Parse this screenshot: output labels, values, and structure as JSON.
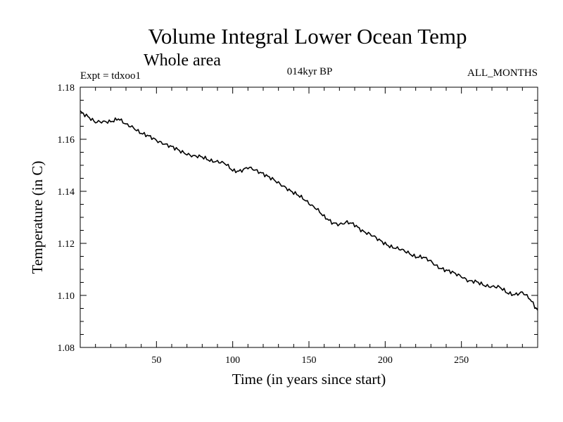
{
  "chart_data": {
    "type": "line",
    "title": "Volume Integral Lower Ocean Temp",
    "subtitle": "Whole area",
    "annotations": {
      "experiment": "Expt = tdxoo1",
      "period": "014kyr BP",
      "months": "ALL_MONTHS"
    },
    "xlabel": "Time (in years since start)",
    "ylabel": "Temperature (in C)",
    "xlim": [
      0,
      300
    ],
    "ylim": [
      1.08,
      1.18
    ],
    "xticks": [
      50,
      100,
      150,
      200,
      250
    ],
    "xtick_labels": [
      "50",
      "100",
      "150",
      "200",
      "250"
    ],
    "yticks": [
      1.08,
      1.1,
      1.12,
      1.14,
      1.16,
      1.18
    ],
    "ytick_labels": [
      "1.08",
      "1.10",
      "1.12",
      "1.14",
      "1.16",
      "1.18"
    ],
    "grid": false,
    "series": [
      {
        "name": "Temperature",
        "color": "#000000",
        "x": [
          0,
          5,
          10,
          15,
          20,
          25,
          30,
          35,
          40,
          45,
          50,
          55,
          60,
          65,
          70,
          75,
          80,
          85,
          90,
          95,
          100,
          105,
          110,
          115,
          120,
          125,
          130,
          135,
          140,
          145,
          150,
          155,
          160,
          165,
          170,
          175,
          180,
          185,
          190,
          195,
          200,
          205,
          210,
          215,
          220,
          225,
          230,
          235,
          240,
          245,
          250,
          255,
          260,
          265,
          270,
          275,
          280,
          285,
          290,
          295,
          300
        ],
        "values": [
          1.1705,
          1.169,
          1.1665,
          1.1665,
          1.167,
          1.168,
          1.1655,
          1.1645,
          1.1625,
          1.161,
          1.1595,
          1.1585,
          1.157,
          1.1555,
          1.1545,
          1.1535,
          1.153,
          1.152,
          1.1515,
          1.1505,
          1.148,
          1.148,
          1.149,
          1.148,
          1.147,
          1.145,
          1.143,
          1.1415,
          1.1395,
          1.1375,
          1.1355,
          1.1335,
          1.13,
          1.128,
          1.1275,
          1.128,
          1.127,
          1.125,
          1.1235,
          1.1215,
          1.12,
          1.1185,
          1.1175,
          1.1165,
          1.115,
          1.1145,
          1.113,
          1.111,
          1.1095,
          1.1085,
          1.1075,
          1.1055,
          1.105,
          1.104,
          1.1035,
          1.103,
          1.101,
          1.1005,
          1.101,
          1.0985,
          1.0945
        ]
      }
    ]
  }
}
